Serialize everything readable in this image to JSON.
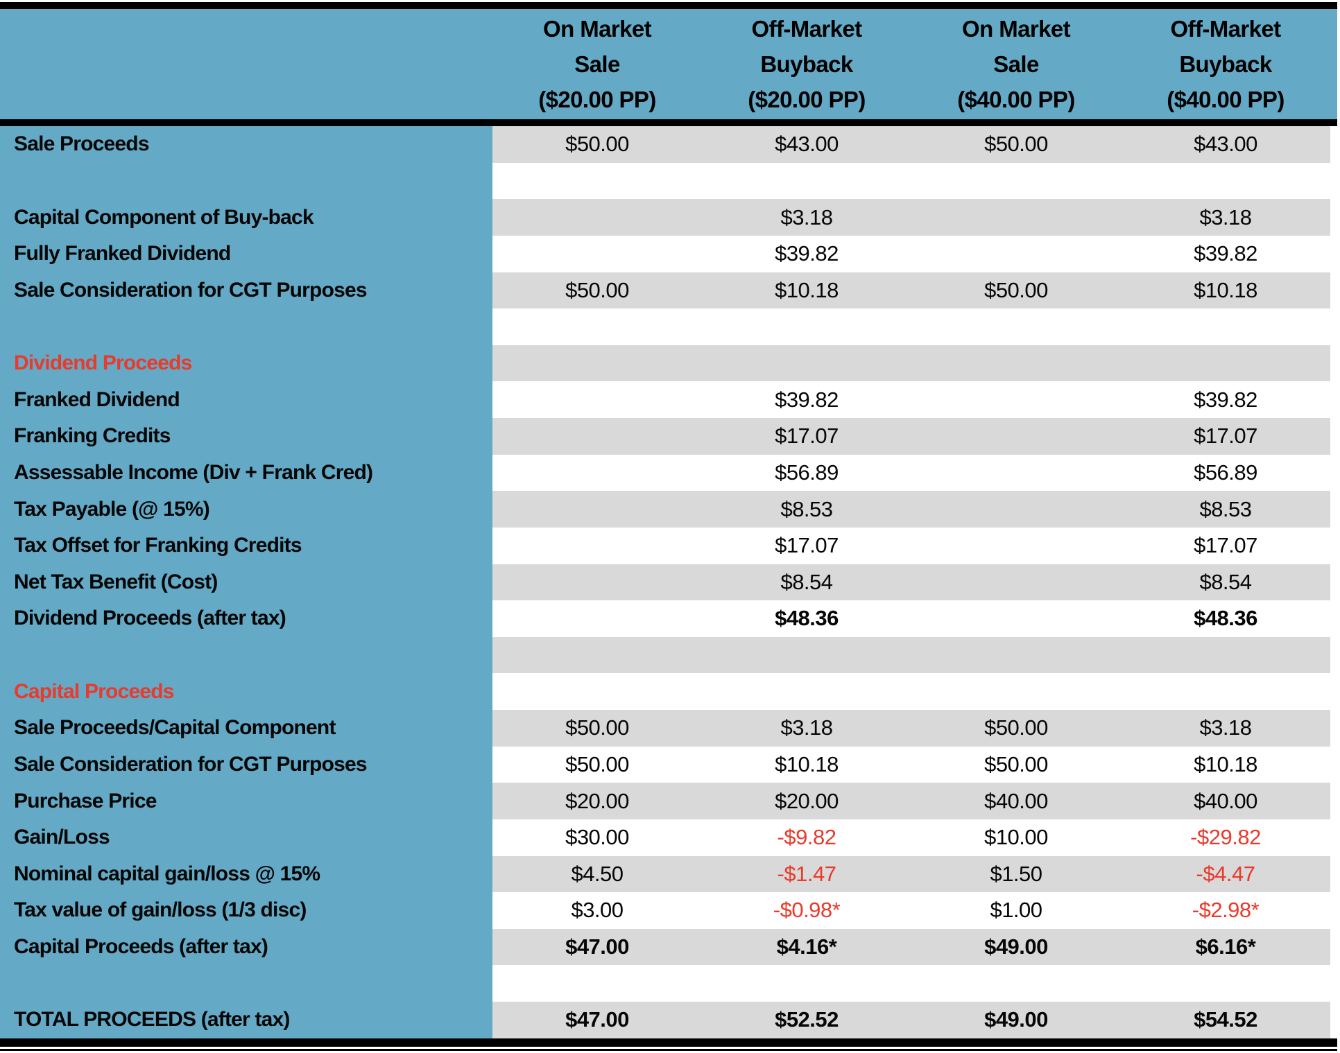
{
  "table": {
    "columns": [
      {
        "lines": [
          "On Market",
          "Sale",
          "($20.00 PP)"
        ]
      },
      {
        "lines": [
          "Off-Market",
          "Buyback",
          "($20.00 PP)"
        ]
      },
      {
        "lines": [
          "On Market",
          "Sale",
          "($40.00 PP)"
        ]
      },
      {
        "lines": [
          "Off-Market",
          "Buyback",
          "($40.00 PP)"
        ]
      }
    ],
    "rows": [
      {
        "label": "Sale Proceeds",
        "bg": "gray",
        "values": [
          "$50.00",
          "$43.00",
          "$50.00",
          "$43.00"
        ]
      },
      {
        "label": "",
        "bg": "white",
        "values": [
          "",
          "",
          "",
          ""
        ]
      },
      {
        "label": "Capital Component of Buy-back",
        "bg": "gray",
        "values": [
          "",
          "$3.18",
          "",
          "$3.18"
        ]
      },
      {
        "label": "Fully Franked Dividend",
        "bg": "white",
        "values": [
          "",
          "$39.82",
          "",
          "$39.82"
        ]
      },
      {
        "label": "Sale Consideration for CGT Purposes",
        "bg": "gray",
        "values": [
          "$50.00",
          "$10.18",
          "$50.00",
          "$10.18"
        ]
      },
      {
        "label": "",
        "bg": "white",
        "values": [
          "",
          "",
          "",
          ""
        ]
      },
      {
        "label": "Dividend Proceeds",
        "bg": "gray",
        "section": true,
        "values": [
          "",
          "",
          "",
          ""
        ]
      },
      {
        "label": "Franked Dividend",
        "bg": "white",
        "values": [
          "",
          "$39.82",
          "",
          "$39.82"
        ]
      },
      {
        "label": "Franking Credits",
        "bg": "gray",
        "values": [
          "",
          "$17.07",
          "",
          "$17.07"
        ]
      },
      {
        "label": "Assessable Income (Div + Frank Cred)",
        "bg": "white",
        "values": [
          "",
          "$56.89",
          "",
          "$56.89"
        ]
      },
      {
        "label": "Tax Payable (@ 15%)",
        "bg": "gray",
        "values": [
          "",
          "$8.53",
          "",
          "$8.53"
        ]
      },
      {
        "label": "Tax Offset for Franking Credits",
        "bg": "white",
        "values": [
          "",
          "$17.07",
          "",
          "$17.07"
        ]
      },
      {
        "label": "Net Tax Benefit (Cost)",
        "bg": "gray",
        "values": [
          "",
          "$8.54",
          "",
          "$8.54"
        ]
      },
      {
        "label": "Dividend Proceeds (after tax)",
        "bg": "white",
        "bold": true,
        "values": [
          "",
          "$48.36",
          "",
          "$48.36"
        ]
      },
      {
        "label": "",
        "bg": "gray",
        "values": [
          "",
          "",
          "",
          ""
        ]
      },
      {
        "label": "Capital Proceeds",
        "bg": "white",
        "section": true,
        "values": [
          "",
          "",
          "",
          ""
        ]
      },
      {
        "label": "Sale Proceeds/Capital Component",
        "bg": "gray",
        "values": [
          "$50.00",
          "$3.18",
          "$50.00",
          "$3.18"
        ]
      },
      {
        "label": "Sale Consideration for CGT Purposes",
        "bg": "white",
        "values": [
          "$50.00",
          "$10.18",
          "$50.00",
          "$10.18"
        ]
      },
      {
        "label": "Purchase Price",
        "bg": "gray",
        "values": [
          "$20.00",
          "$20.00",
          "$40.00",
          "$40.00"
        ]
      },
      {
        "label": "Gain/Loss",
        "bg": "white",
        "values": [
          "$30.00",
          "-$9.82",
          "$10.00",
          "-$29.82"
        ]
      },
      {
        "label": "Nominal capital gain/loss @ 15%",
        "bg": "gray",
        "values": [
          "$4.50",
          "-$1.47",
          "$1.50",
          "-$4.47"
        ]
      },
      {
        "label": "Tax value of gain/loss (1/3 disc)",
        "bg": "white",
        "values": [
          "$3.00",
          "-$0.98*",
          "$1.00",
          "-$2.98*"
        ]
      },
      {
        "label": "Capital Proceeds (after tax)",
        "bg": "gray",
        "bold": true,
        "values": [
          "$47.00",
          "$4.16*",
          "$49.00",
          "$6.16*"
        ]
      },
      {
        "label": "",
        "bg": "white",
        "values": [
          "",
          "",
          "",
          ""
        ]
      },
      {
        "label": "TOTAL PROCEEDS (after tax)",
        "bg": "gray",
        "bold": true,
        "values": [
          "$47.00",
          "$52.52",
          "$49.00",
          "$54.52"
        ]
      }
    ]
  },
  "colors": {
    "header_blue": "#64A9C5",
    "band_gray": "#D9D9D9",
    "accent_red": "#E93A2B",
    "border_black": "#000000"
  }
}
